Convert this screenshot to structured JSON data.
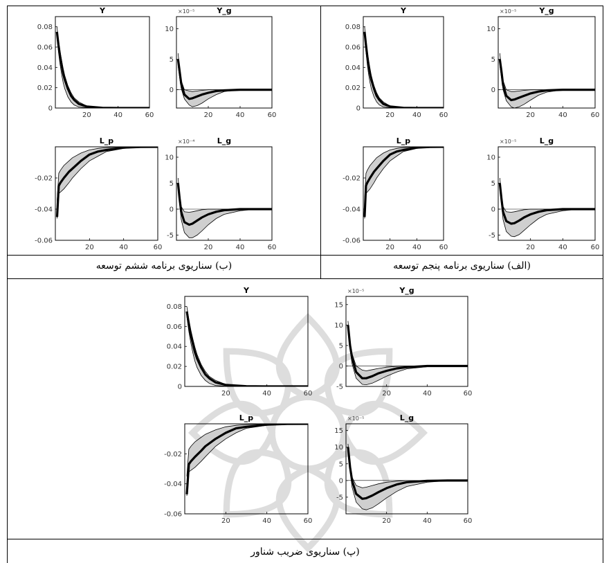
{
  "captions": {
    "b": "(ب) سناریوی برنامه ششم توسعه",
    "alef": "(الف) سناریوی برنامه پنجم توسعه",
    "p": "(پ) سناریوی ضریب شناور"
  },
  "chart_data": [
    {
      "panel_id": "b-Y",
      "type": "line",
      "title": "Y",
      "xlim": [
        0,
        60
      ],
      "ylim": [
        0,
        0.09
      ],
      "xticks": [
        "20",
        "40",
        "60"
      ],
      "yticks": [
        "0",
        "0.02",
        "0.04",
        "0.06",
        "0.08"
      ],
      "exponent": "",
      "x": [
        1,
        2,
        3,
        4,
        5,
        6,
        8,
        10,
        12,
        15,
        20,
        30,
        40,
        60
      ],
      "series": [
        {
          "role": "mean",
          "values": [
            0.075,
            0.062,
            0.051,
            0.042,
            0.034,
            0.028,
            0.019,
            0.012,
            0.008,
            0.004,
            0.0015,
            0.0002,
            0,
            0
          ]
        },
        {
          "role": "upper",
          "values": [
            0.08,
            0.067,
            0.056,
            0.047,
            0.039,
            0.032,
            0.022,
            0.015,
            0.01,
            0.006,
            0.002,
            0.0004,
            0.0001,
            0
          ]
        },
        {
          "role": "lower",
          "values": [
            0.07,
            0.055,
            0.043,
            0.033,
            0.025,
            0.019,
            0.011,
            0.006,
            0.003,
            0.001,
            0.0003,
            0,
            0,
            0
          ]
        }
      ]
    },
    {
      "panel_id": "b-Yg",
      "type": "line",
      "title": "Y_g",
      "xlim": [
        0,
        60
      ],
      "ylim": [
        -3,
        12
      ],
      "xticks": [
        "20",
        "40",
        "60"
      ],
      "yticks": [
        "0",
        "5",
        "10"
      ],
      "exponent": "×10⁻⁵",
      "x": [
        1,
        2,
        3,
        5,
        8,
        10,
        13,
        16,
        20,
        25,
        30,
        40,
        50,
        60
      ],
      "series": [
        {
          "role": "mean",
          "values": [
            5,
            3,
            1,
            -0.8,
            -1.5,
            -1.4,
            -1.1,
            -0.8,
            -0.5,
            -0.2,
            -0.1,
            0,
            0,
            0
          ]
        },
        {
          "role": "upper",
          "values": [
            6,
            3.5,
            1.5,
            0,
            -0.2,
            -0.3,
            -0.2,
            -0.1,
            0,
            0,
            0,
            0,
            0,
            0
          ]
        },
        {
          "role": "lower",
          "values": [
            4,
            2,
            0.2,
            -1.5,
            -2.5,
            -2.8,
            -2.6,
            -2.2,
            -1.5,
            -0.8,
            -0.3,
            0,
            0,
            0
          ]
        }
      ]
    },
    {
      "panel_id": "b-Lp",
      "type": "line",
      "title": "L_p",
      "xlim": [
        0,
        60
      ],
      "ylim": [
        -0.06,
        0
      ],
      "xticks": [
        "20",
        "40",
        "60"
      ],
      "yticks": [
        "-0.02",
        "-0.04",
        "-0.06"
      ],
      "exponent": "",
      "x": [
        1,
        2,
        3,
        5,
        8,
        10,
        15,
        20,
        25,
        30,
        40,
        50,
        60
      ],
      "series": [
        {
          "role": "mean",
          "values": [
            -0.045,
            -0.025,
            -0.023,
            -0.02,
            -0.016,
            -0.014,
            -0.009,
            -0.005,
            -0.003,
            -0.002,
            -0.0005,
            -0.0001,
            0
          ]
        },
        {
          "role": "upper",
          "values": [
            -0.035,
            -0.017,
            -0.015,
            -0.012,
            -0.009,
            -0.007,
            -0.004,
            -0.002,
            -0.001,
            -0.0005,
            0,
            0,
            0
          ]
        },
        {
          "role": "lower",
          "values": [
            -0.046,
            -0.03,
            -0.029,
            -0.027,
            -0.023,
            -0.02,
            -0.014,
            -0.009,
            -0.006,
            -0.003,
            -0.001,
            -0.0002,
            0
          ]
        }
      ]
    },
    {
      "panel_id": "b-Lg",
      "type": "line",
      "title": "L_g",
      "xlim": [
        0,
        60
      ],
      "ylim": [
        -6,
        12
      ],
      "xticks": [
        "20",
        "40",
        "60"
      ],
      "yticks": [
        "-5",
        "0",
        "5",
        "10"
      ],
      "exponent": "×10⁻⁴",
      "x": [
        1,
        2,
        3,
        5,
        8,
        10,
        13,
        16,
        20,
        25,
        30,
        40,
        50,
        60
      ],
      "series": [
        {
          "role": "mean",
          "values": [
            5,
            2,
            -0.5,
            -2.5,
            -3,
            -2.8,
            -2.2,
            -1.6,
            -1,
            -0.5,
            -0.2,
            0,
            0,
            0
          ]
        },
        {
          "role": "upper",
          "values": [
            6,
            3,
            0.5,
            -0.5,
            -0.6,
            -0.5,
            -0.3,
            -0.1,
            0,
            0,
            0,
            0,
            0,
            0
          ]
        },
        {
          "role": "lower",
          "values": [
            4,
            1,
            -2,
            -4.5,
            -5.5,
            -5.5,
            -5,
            -4.2,
            -3,
            -1.8,
            -1,
            -0.3,
            0,
            0
          ]
        }
      ]
    },
    {
      "panel_id": "a-Y",
      "type": "line",
      "title": "Y",
      "xlim": [
        0,
        60
      ],
      "ylim": [
        0,
        0.09
      ],
      "xticks": [
        "20",
        "40",
        "60"
      ],
      "yticks": [
        "0",
        "0.02",
        "0.04",
        "0.06",
        "0.08"
      ],
      "exponent": "",
      "x": [
        1,
        2,
        3,
        4,
        5,
        6,
        8,
        10,
        12,
        15,
        20,
        30,
        40,
        60
      ],
      "series": [
        {
          "role": "mean",
          "values": [
            0.075,
            0.062,
            0.051,
            0.042,
            0.034,
            0.028,
            0.019,
            0.012,
            0.008,
            0.004,
            0.0015,
            0.0002,
            0,
            0
          ]
        },
        {
          "role": "upper",
          "values": [
            0.08,
            0.067,
            0.056,
            0.047,
            0.039,
            0.032,
            0.022,
            0.015,
            0.01,
            0.006,
            0.002,
            0.0004,
            0.0001,
            0
          ]
        },
        {
          "role": "lower",
          "values": [
            0.07,
            0.055,
            0.043,
            0.033,
            0.025,
            0.019,
            0.011,
            0.006,
            0.003,
            0.001,
            0.0003,
            0,
            0,
            0
          ]
        }
      ]
    },
    {
      "panel_id": "a-Yg",
      "type": "line",
      "title": "Y_g",
      "xlim": [
        0,
        60
      ],
      "ylim": [
        -3,
        12
      ],
      "xticks": [
        "20",
        "40",
        "60"
      ],
      "yticks": [
        "0",
        "5",
        "10"
      ],
      "exponent": "×10⁻⁵",
      "x": [
        1,
        2,
        3,
        5,
        8,
        10,
        13,
        16,
        20,
        25,
        30,
        40,
        50,
        60
      ],
      "series": [
        {
          "role": "mean",
          "values": [
            5,
            3,
            0.8,
            -1,
            -1.7,
            -1.6,
            -1.3,
            -1,
            -0.6,
            -0.3,
            -0.1,
            0,
            0,
            0
          ]
        },
        {
          "role": "upper",
          "values": [
            6,
            3.5,
            1.5,
            0,
            -0.3,
            -0.3,
            -0.2,
            -0.1,
            0,
            0,
            0,
            0,
            0,
            0
          ]
        },
        {
          "role": "lower",
          "values": [
            4,
            2,
            0,
            -1.8,
            -2.8,
            -3,
            -2.8,
            -2.4,
            -1.7,
            -0.9,
            -0.4,
            0,
            0,
            0
          ]
        }
      ]
    },
    {
      "panel_id": "a-Lp",
      "type": "line",
      "title": "L_p",
      "xlim": [
        0,
        60
      ],
      "ylim": [
        -0.06,
        0
      ],
      "xticks": [
        "20",
        "40",
        "60"
      ],
      "yticks": [
        "-0.02",
        "-0.04",
        "-0.06"
      ],
      "exponent": "",
      "x": [
        1,
        2,
        3,
        5,
        8,
        10,
        15,
        20,
        25,
        30,
        40,
        50,
        60
      ],
      "series": [
        {
          "role": "mean",
          "values": [
            -0.045,
            -0.025,
            -0.023,
            -0.02,
            -0.016,
            -0.014,
            -0.009,
            -0.005,
            -0.003,
            -0.002,
            -0.0005,
            -0.0001,
            0
          ]
        },
        {
          "role": "upper",
          "values": [
            -0.035,
            -0.017,
            -0.015,
            -0.012,
            -0.009,
            -0.007,
            -0.004,
            -0.002,
            -0.001,
            -0.0005,
            0,
            0,
            0
          ]
        },
        {
          "role": "lower",
          "values": [
            -0.046,
            -0.03,
            -0.029,
            -0.027,
            -0.023,
            -0.02,
            -0.014,
            -0.009,
            -0.006,
            -0.003,
            -0.001,
            -0.0002,
            0
          ]
        }
      ]
    },
    {
      "panel_id": "a-Lg",
      "type": "line",
      "title": "L_g",
      "xlim": [
        0,
        60
      ],
      "ylim": [
        -6,
        12
      ],
      "xticks": [
        "20",
        "40",
        "60"
      ],
      "yticks": [
        "-5",
        "0",
        "5",
        "10"
      ],
      "exponent": "×10⁻⁵",
      "x": [
        1,
        2,
        3,
        5,
        8,
        10,
        13,
        16,
        20,
        25,
        30,
        40,
        50,
        60
      ],
      "series": [
        {
          "role": "mean",
          "values": [
            5,
            2,
            -0.5,
            -2.3,
            -2.8,
            -2.7,
            -2.2,
            -1.6,
            -1,
            -0.5,
            -0.2,
            0,
            0,
            0
          ]
        },
        {
          "role": "upper",
          "values": [
            6,
            3,
            0.5,
            -0.5,
            -0.6,
            -0.5,
            -0.3,
            -0.1,
            0,
            0,
            0,
            0,
            0,
            0
          ]
        },
        {
          "role": "lower",
          "values": [
            4,
            1,
            -2,
            -4.3,
            -5.2,
            -5.3,
            -4.9,
            -4.1,
            -3,
            -1.8,
            -1,
            -0.3,
            0,
            0
          ]
        }
      ]
    },
    {
      "panel_id": "p-Y",
      "type": "line",
      "title": "Y",
      "xlim": [
        0,
        60
      ],
      "ylim": [
        0,
        0.09
      ],
      "xticks": [
        "20",
        "40",
        "60"
      ],
      "yticks": [
        "0",
        "0.02",
        "0.04",
        "0.06",
        "0.08"
      ],
      "exponent": "",
      "x": [
        1,
        2,
        3,
        4,
        5,
        6,
        8,
        10,
        12,
        15,
        20,
        30,
        40,
        60
      ],
      "series": [
        {
          "role": "mean",
          "values": [
            0.075,
            0.062,
            0.051,
            0.042,
            0.034,
            0.028,
            0.019,
            0.012,
            0.008,
            0.004,
            0.0015,
            0.0002,
            0,
            0
          ]
        },
        {
          "role": "upper",
          "values": [
            0.08,
            0.067,
            0.056,
            0.047,
            0.039,
            0.032,
            0.022,
            0.015,
            0.01,
            0.006,
            0.002,
            0.0004,
            0.0001,
            0
          ]
        },
        {
          "role": "lower",
          "values": [
            0.07,
            0.055,
            0.043,
            0.033,
            0.025,
            0.019,
            0.011,
            0.006,
            0.003,
            0.001,
            0.0003,
            0,
            0,
            0
          ]
        }
      ]
    },
    {
      "panel_id": "p-Yg",
      "type": "line",
      "title": "Y_g",
      "xlim": [
        0,
        60
      ],
      "ylim": [
        -5,
        17
      ],
      "xticks": [
        "20",
        "40",
        "60"
      ],
      "yticks": [
        "-5",
        "0",
        "5",
        "10",
        "15"
      ],
      "exponent": "×10⁻⁵",
      "x": [
        1,
        2,
        3,
        5,
        8,
        10,
        13,
        16,
        20,
        25,
        30,
        40,
        50,
        60
      ],
      "series": [
        {
          "role": "mean",
          "values": [
            10,
            5,
            2,
            -1.5,
            -3,
            -3,
            -2.5,
            -1.8,
            -1.2,
            -0.6,
            -0.3,
            0,
            0,
            0
          ]
        },
        {
          "role": "upper",
          "values": [
            11,
            6,
            3,
            0,
            -1,
            -1.2,
            -0.9,
            -0.6,
            -0.3,
            -0.1,
            0,
            0,
            0,
            0
          ]
        },
        {
          "role": "lower",
          "values": [
            9,
            4,
            0.5,
            -3,
            -4.5,
            -4.6,
            -4.2,
            -3.5,
            -2.5,
            -1.5,
            -0.7,
            -0.2,
            0,
            0
          ]
        }
      ]
    },
    {
      "panel_id": "p-Lp",
      "type": "line",
      "title": "L_p",
      "xlim": [
        0,
        60
      ],
      "ylim": [
        -0.06,
        0
      ],
      "xticks": [
        "20",
        "40",
        "60"
      ],
      "yticks": [
        "-0.02",
        "-0.04",
        "-0.06"
      ],
      "exponent": "",
      "x": [
        1,
        2,
        3,
        5,
        8,
        10,
        15,
        20,
        25,
        30,
        40,
        50,
        60
      ],
      "series": [
        {
          "role": "mean",
          "values": [
            -0.047,
            -0.027,
            -0.025,
            -0.022,
            -0.018,
            -0.015,
            -0.01,
            -0.006,
            -0.003,
            -0.002,
            -0.0005,
            -0.0001,
            0
          ]
        },
        {
          "role": "upper",
          "values": [
            -0.035,
            -0.017,
            -0.015,
            -0.012,
            -0.009,
            -0.007,
            -0.004,
            -0.002,
            -0.001,
            -0.0005,
            0,
            0,
            0
          ]
        },
        {
          "role": "lower",
          "values": [
            -0.048,
            -0.032,
            -0.031,
            -0.029,
            -0.025,
            -0.022,
            -0.015,
            -0.01,
            -0.006,
            -0.003,
            -0.001,
            -0.0002,
            0
          ]
        }
      ]
    },
    {
      "panel_id": "p-Lg",
      "type": "line",
      "title": "L_g",
      "xlim": [
        0,
        60
      ],
      "ylim": [
        -10,
        17
      ],
      "xticks": [
        "20",
        "40",
        "60"
      ],
      "yticks": [
        "-5",
        "0",
        "5",
        "10",
        "15"
      ],
      "exponent": "×10⁻⁵",
      "x": [
        1,
        2,
        3,
        5,
        8,
        10,
        13,
        16,
        20,
        25,
        30,
        40,
        50,
        60
      ],
      "series": [
        {
          "role": "mean",
          "values": [
            10,
            4,
            0,
            -4,
            -5.5,
            -5.3,
            -4.5,
            -3.5,
            -2.3,
            -1.2,
            -0.5,
            -0.1,
            0,
            0
          ]
        },
        {
          "role": "upper",
          "values": [
            11,
            5,
            1,
            -1.5,
            -2.2,
            -2,
            -1.5,
            -1,
            -0.5,
            -0.2,
            0,
            0,
            0,
            0
          ]
        },
        {
          "role": "lower",
          "values": [
            9,
            3,
            -2,
            -6.5,
            -8.5,
            -8.8,
            -8.2,
            -7,
            -5.2,
            -3.3,
            -1.8,
            -0.5,
            -0.1,
            0
          ]
        }
      ]
    }
  ]
}
